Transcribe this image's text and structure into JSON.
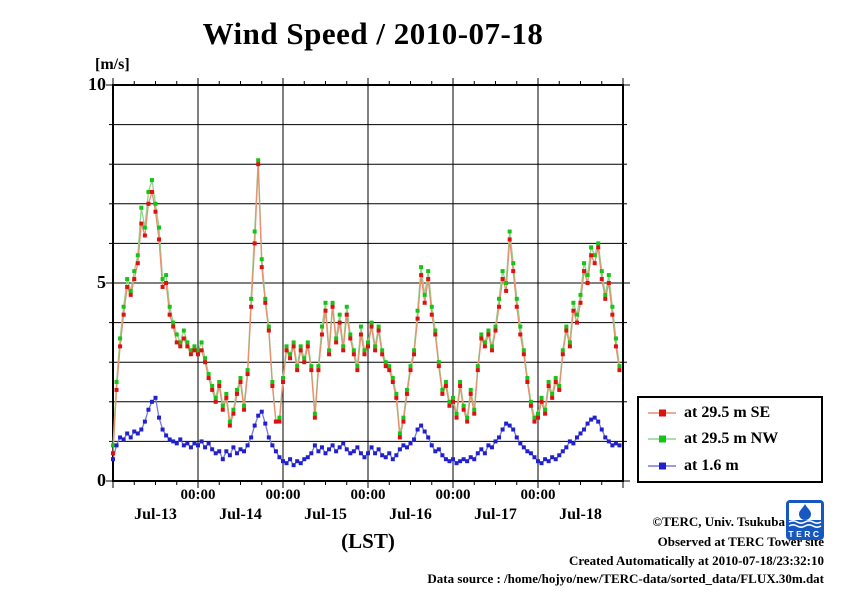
{
  "title": "Wind Speed / 2010-07-18",
  "y_axis": {
    "unit_label": "[m/s]",
    "ticks": [
      {
        "value": 0,
        "label": "0"
      },
      {
        "value": 5,
        "label": "5"
      },
      {
        "value": 10,
        "label": "10"
      }
    ]
  },
  "x_axis": {
    "midnight_label": "00:00",
    "day_labels": [
      "Jul-13",
      "Jul-14",
      "Jul-15",
      "Jul-16",
      "Jul-17",
      "Jul-18"
    ],
    "axis_label": "(LST)"
  },
  "legend": {
    "entries": [
      {
        "label": "at 29.5 m SE",
        "marker_color": "#dd1111",
        "line_color": "#e69070"
      },
      {
        "label": "at 29.5 m NW",
        "marker_color": "#15c415",
        "line_color": "#8ed48e"
      },
      {
        "label": "at 1.6 m",
        "marker_color": "#2020cc",
        "line_color": "#7878dd"
      }
    ]
  },
  "footer": {
    "copyright": "©TERC, Univ. Tsukuba",
    "observed": "Observed at TERC Tower site",
    "created": "Created Automatically at 2010-07-18/23:32:10",
    "source": "Data source : /home/hojyo/new/TERC-data/sorted_data/FLUX.30m.dat",
    "logo_text": "TERC"
  },
  "chart_data": {
    "type": "line",
    "title": "Wind Speed / 2010-07-18",
    "xlabel": "(LST)",
    "ylabel": "[m/s]",
    "ylim": [
      0,
      10
    ],
    "grid": true,
    "legend_position": "outside-right-bottom",
    "x_unit": "hours since 2010-07-13 00:00 LST",
    "x_step_hours": 1,
    "x_range_hours": [
      0,
      144
    ],
    "x_day_boundaries_hours": [
      0,
      24,
      48,
      72,
      96,
      120,
      144
    ],
    "minor_tick_hours": 6,
    "series": [
      {
        "name": "at 29.5 m SE",
        "marker_color": "#dd1111",
        "line_color": "#e69070",
        "values": [
          0.7,
          2.3,
          3.4,
          4.2,
          4.9,
          4.7,
          5.1,
          5.5,
          6.5,
          6.2,
          7.0,
          7.3,
          6.8,
          6.1,
          4.9,
          5.0,
          4.2,
          3.9,
          3.5,
          3.4,
          3.6,
          3.4,
          3.2,
          3.3,
          3.2,
          3.3,
          3.0,
          2.6,
          2.3,
          2.0,
          2.4,
          1.8,
          2.1,
          1.4,
          1.7,
          2.2,
          2.5,
          1.8,
          2.7,
          4.4,
          6.0,
          8.0,
          5.4,
          4.5,
          3.8,
          2.4,
          1.5,
          1.5,
          2.5,
          3.3,
          3.1,
          3.4,
          2.8,
          3.3,
          3.0,
          3.4,
          2.8,
          1.6,
          2.8,
          3.7,
          4.3,
          3.2,
          4.4,
          3.5,
          4.0,
          3.3,
          4.2,
          3.6,
          3.2,
          2.8,
          3.7,
          3.2,
          3.4,
          3.9,
          3.3,
          3.8,
          3.2,
          2.9,
          2.8,
          2.5,
          2.1,
          1.1,
          1.5,
          2.2,
          2.8,
          3.2,
          4.1,
          5.2,
          4.5,
          5.1,
          4.2,
          3.7,
          2.9,
          2.2,
          2.4,
          1.9,
          2.0,
          1.6,
          2.4,
          1.8,
          1.5,
          2.2,
          1.7,
          2.8,
          3.6,
          3.4,
          3.7,
          3.3,
          3.8,
          4.4,
          5.1,
          4.8,
          6.1,
          5.3,
          4.4,
          3.7,
          3.2,
          2.5,
          1.9,
          1.5,
          1.6,
          2.0,
          1.7,
          2.4,
          2.1,
          2.5,
          2.3,
          3.2,
          3.8,
          3.4,
          4.3,
          4.0,
          4.5,
          5.3,
          5.0,
          5.7,
          5.5,
          5.9,
          5.1,
          4.6,
          5.0,
          4.2,
          3.4,
          2.8
        ]
      },
      {
        "name": "at 29.5 m NW",
        "marker_color": "#15c415",
        "line_color": "#8ed48e",
        "values": [
          0.9,
          2.5,
          3.6,
          4.4,
          5.1,
          4.8,
          5.3,
          5.7,
          6.9,
          6.4,
          7.3,
          7.6,
          7.0,
          6.4,
          5.1,
          5.2,
          4.4,
          4.0,
          3.7,
          3.5,
          3.8,
          3.5,
          3.3,
          3.4,
          3.3,
          3.5,
          3.1,
          2.7,
          2.4,
          2.1,
          2.5,
          1.9,
          2.2,
          1.5,
          1.8,
          2.3,
          2.6,
          1.9,
          2.8,
          4.6,
          6.3,
          8.1,
          5.6,
          4.6,
          3.9,
          2.5,
          1.5,
          1.6,
          2.6,
          3.4,
          3.2,
          3.5,
          2.9,
          3.4,
          3.1,
          3.5,
          2.9,
          1.7,
          2.9,
          3.9,
          4.5,
          3.3,
          4.5,
          3.6,
          4.2,
          3.4,
          4.4,
          3.7,
          3.3,
          2.9,
          3.9,
          3.3,
          3.5,
          4.0,
          3.4,
          3.9,
          3.3,
          3.0,
          2.9,
          2.6,
          2.2,
          1.2,
          1.6,
          2.3,
          2.9,
          3.3,
          4.3,
          5.4,
          4.7,
          5.3,
          4.4,
          3.8,
          3.0,
          2.3,
          2.5,
          2.0,
          2.1,
          1.7,
          2.5,
          1.9,
          1.6,
          2.3,
          1.8,
          2.9,
          3.7,
          3.5,
          3.8,
          3.4,
          3.9,
          4.6,
          5.3,
          5.0,
          6.3,
          5.5,
          4.6,
          3.9,
          3.3,
          2.6,
          2.0,
          1.6,
          1.7,
          2.1,
          1.8,
          2.5,
          2.2,
          2.6,
          2.4,
          3.3,
          3.9,
          3.5,
          4.5,
          4.2,
          4.7,
          5.5,
          5.2,
          5.9,
          5.7,
          6.0,
          5.3,
          4.7,
          5.2,
          4.4,
          3.6,
          2.9
        ]
      },
      {
        "name": "at 1.6 m",
        "marker_color": "#2020cc",
        "line_color": "#7878dd",
        "values": [
          0.55,
          0.9,
          1.1,
          1.05,
          1.2,
          1.1,
          1.25,
          1.2,
          1.3,
          1.5,
          1.8,
          2.0,
          2.1,
          1.6,
          1.3,
          1.15,
          1.05,
          1.0,
          0.95,
          1.05,
          0.9,
          0.95,
          0.85,
          0.95,
          0.9,
          1.0,
          0.85,
          0.95,
          0.8,
          0.7,
          0.75,
          0.55,
          0.75,
          0.65,
          0.85,
          0.7,
          0.8,
          0.75,
          0.9,
          1.1,
          1.4,
          1.65,
          1.75,
          1.45,
          1.1,
          0.9,
          0.75,
          0.6,
          0.5,
          0.45,
          0.55,
          0.4,
          0.5,
          0.45,
          0.55,
          0.6,
          0.7,
          0.9,
          0.75,
          0.85,
          0.7,
          0.8,
          0.9,
          0.75,
          0.85,
          0.95,
          0.8,
          0.7,
          0.75,
          0.85,
          0.7,
          0.6,
          0.7,
          0.85,
          0.7,
          0.8,
          0.65,
          0.6,
          0.7,
          0.55,
          0.65,
          0.8,
          0.9,
          0.85,
          0.95,
          1.05,
          1.3,
          1.4,
          1.25,
          1.1,
          0.9,
          0.75,
          0.8,
          0.65,
          0.55,
          0.5,
          0.55,
          0.45,
          0.5,
          0.55,
          0.5,
          0.6,
          0.55,
          0.7,
          0.8,
          0.7,
          0.9,
          0.85,
          1.0,
          1.1,
          1.3,
          1.45,
          1.4,
          1.3,
          1.1,
          0.95,
          0.85,
          0.75,
          0.7,
          0.6,
          0.5,
          0.45,
          0.55,
          0.5,
          0.6,
          0.55,
          0.65,
          0.75,
          0.85,
          1.0,
          0.95,
          1.1,
          1.2,
          1.3,
          1.45,
          1.55,
          1.6,
          1.5,
          1.3,
          1.1,
          1.0,
          0.9,
          0.95,
          0.9
        ]
      }
    ]
  }
}
